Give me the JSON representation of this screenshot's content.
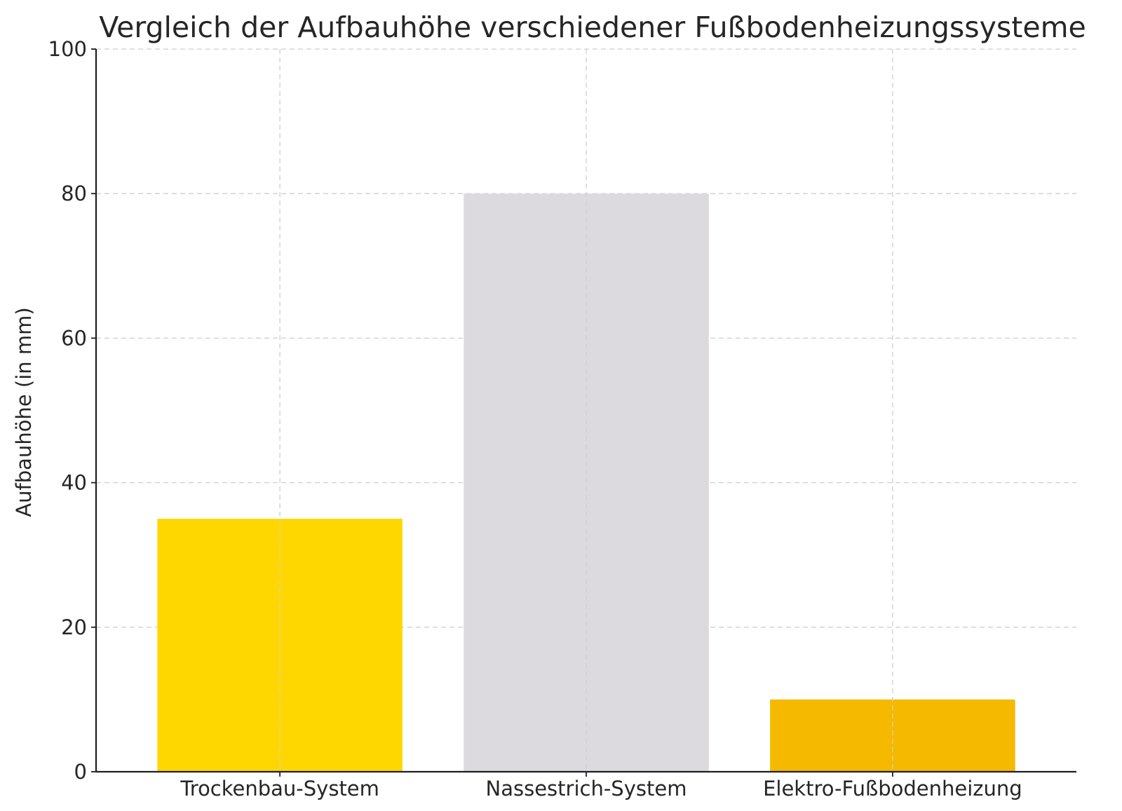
{
  "chart_data": {
    "type": "bar",
    "title": "Vergleich der Aufbauhöhe verschiedener Fußbodenheizungssysteme",
    "xlabel": "",
    "ylabel": "Aufbauhöhe (in mm)",
    "categories": [
      "Trockenbau-System",
      "Nassestrich-System",
      "Elektro-Fußbodenheizung"
    ],
    "values": [
      35,
      80,
      10
    ],
    "colors": [
      "#FFD700",
      "#DCDADE",
      "#F5B900"
    ],
    "ylim": [
      0,
      100
    ],
    "yticks": [
      0,
      20,
      40,
      60,
      80,
      100
    ],
    "grid": true,
    "legend": false
  }
}
